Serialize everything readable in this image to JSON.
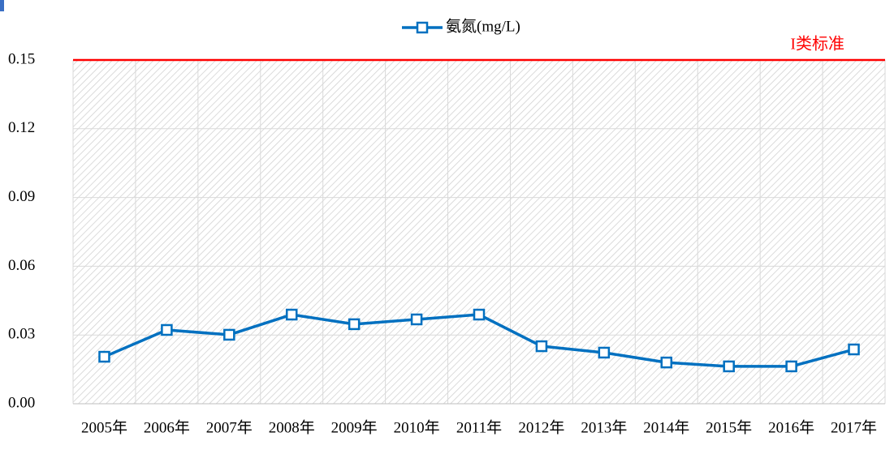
{
  "chart_data": {
    "type": "line",
    "categories": [
      "2005年",
      "2006年",
      "2007年",
      "2008年",
      "2009年",
      "2010年",
      "2011年",
      "2012年",
      "2013年",
      "2014年",
      "2015年",
      "2016年",
      "2017年"
    ],
    "series": [
      {
        "name": "氨氮(mg/L)",
        "color": "#0070c0",
        "values": [
          0.0205,
          0.0322,
          0.0301,
          0.0389,
          0.0347,
          0.0368,
          0.0389,
          0.0251,
          0.0223,
          0.018,
          0.0163,
          0.0163,
          0.0237
        ]
      }
    ],
    "ylim": [
      0,
      0.15
    ],
    "yticks": [
      {
        "value": 0,
        "label": "0.00"
      },
      0.03,
      0.06,
      0.09,
      0.12,
      0.15
    ],
    "grid": true,
    "legend": "top",
    "reference_line": {
      "value": 0.15,
      "label": "I类标准",
      "color": "#ff0000"
    }
  }
}
